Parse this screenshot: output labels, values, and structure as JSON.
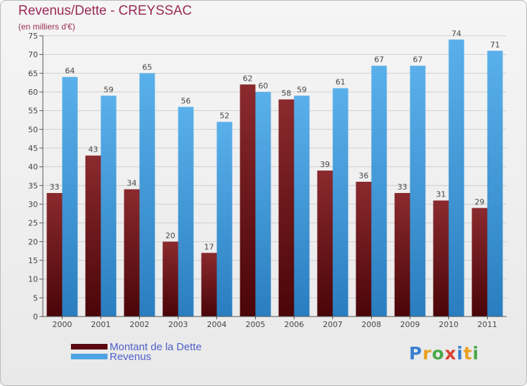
{
  "chart_data": {
    "type": "bar",
    "title": "Revenus/Dette - CREYSSAC",
    "subtitle": "(en milliers d'€)",
    "categories": [
      "2000",
      "2001",
      "2002",
      "2003",
      "2004",
      "2005",
      "2006",
      "2007",
      "2008",
      "2009",
      "2010",
      "2011"
    ],
    "series": [
      {
        "name": "Montant de la Dette",
        "color": "#7a1a1f",
        "values": [
          33,
          43,
          34,
          20,
          17,
          62,
          58,
          39,
          36,
          33,
          31,
          29
        ]
      },
      {
        "name": "Revenus",
        "color": "#4ea3e0",
        "values": [
          64,
          59,
          65,
          56,
          52,
          60,
          59,
          61,
          67,
          67,
          74,
          71
        ]
      }
    ],
    "ylim": [
      0,
      75
    ],
    "yticks": [
      0,
      5,
      10,
      15,
      20,
      25,
      30,
      35,
      40,
      45,
      50,
      55,
      60,
      65,
      70,
      75
    ],
    "grid": true,
    "legend": "bottom-left"
  },
  "brand": {
    "text": "Proxiti",
    "colors": [
      "#3a7fd1",
      "#e8a020",
      "#4aa84a",
      "#d94030",
      "#3a7fd1",
      "#e8a020",
      "#4aa84a"
    ]
  }
}
